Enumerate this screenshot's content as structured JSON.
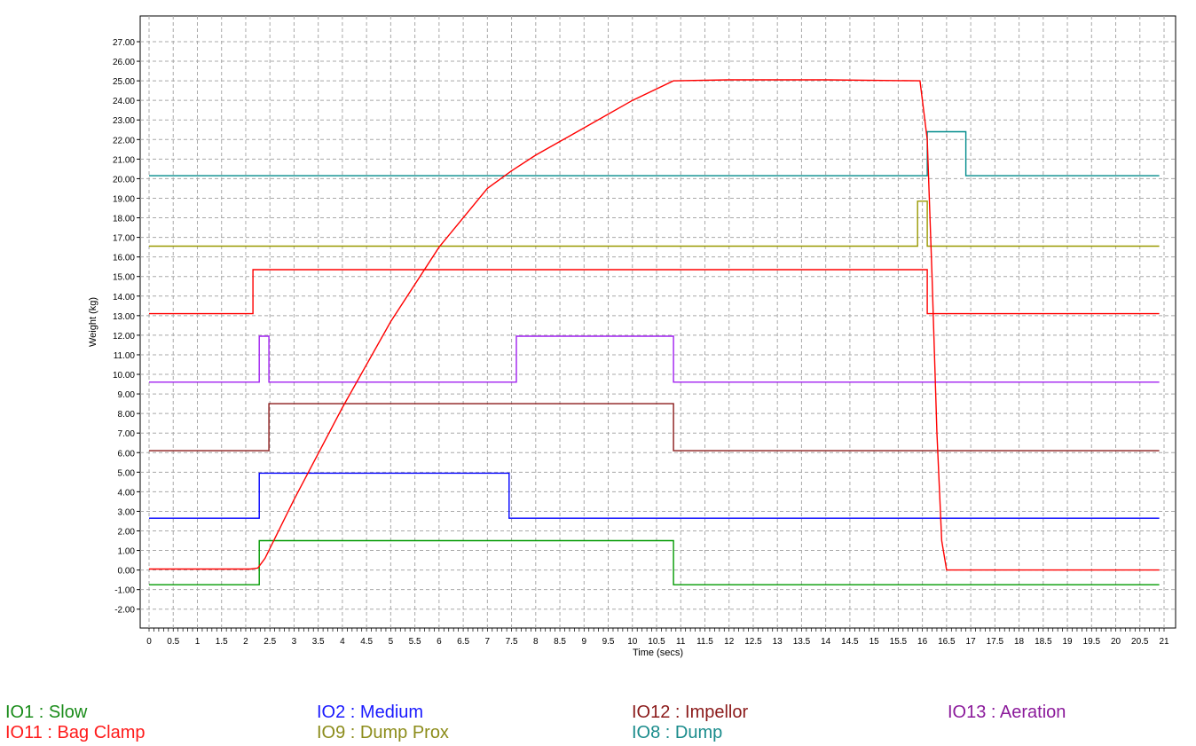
{
  "chart_data": {
    "type": "line",
    "xlabel": "Time (secs)",
    "ylabel": "Weight (kg)",
    "xlim": [
      0,
      21
    ],
    "ylim": [
      -3,
      28
    ],
    "x_ticks": [
      0,
      0.5,
      1,
      1.5,
      2,
      2.5,
      3,
      3.5,
      4,
      4.5,
      5,
      5.5,
      6,
      6.5,
      7,
      7.5,
      8,
      8.5,
      9,
      9.5,
      10,
      10.5,
      11,
      11.5,
      12,
      12.5,
      13,
      13.5,
      14,
      14.5,
      15,
      15.5,
      16,
      16.5,
      17,
      17.5,
      18,
      18.5,
      19,
      19.5,
      20,
      20.5,
      21
    ],
    "y_ticks": [
      -2,
      -1,
      0,
      1,
      2,
      3,
      4,
      5,
      6,
      7,
      8,
      9,
      10,
      11,
      12,
      13,
      14,
      15,
      16,
      17,
      18,
      19,
      20,
      21,
      22,
      23,
      24,
      25,
      26,
      27
    ],
    "grid": true,
    "series": [
      {
        "name": "IO1 : Slow",
        "color": "#009900",
        "x": [
          0,
          2.28,
          2.28,
          10.85,
          10.85,
          20.9
        ],
        "y": [
          -0.75,
          -0.75,
          1.5,
          1.5,
          -0.75,
          -0.75
        ]
      },
      {
        "name": "IO2 : Medium",
        "color": "#0000ff",
        "x": [
          0,
          2.28,
          2.28,
          7.45,
          7.45,
          20.9
        ],
        "y": [
          2.65,
          2.65,
          4.95,
          4.95,
          2.65,
          2.65
        ]
      },
      {
        "name": "IO12 : Impellor",
        "color": "#8b1a1a",
        "x": [
          0,
          2.48,
          2.48,
          10.85,
          10.85,
          20.9
        ],
        "y": [
          6.1,
          6.1,
          8.5,
          8.5,
          6.1,
          6.1
        ]
      },
      {
        "name": "IO13 : Aeration",
        "color": "#a020f0",
        "x": [
          0,
          2.28,
          2.28,
          2.48,
          2.48,
          7.6,
          7.6,
          10.85,
          10.85,
          20.9
        ],
        "y": [
          9.6,
          9.6,
          11.95,
          11.95,
          9.6,
          9.6,
          11.95,
          11.95,
          9.6,
          9.6
        ]
      },
      {
        "name": "IO11 : Bag Clamp",
        "color": "#ff0000",
        "x": [
          0,
          2.15,
          2.15,
          16.1,
          16.1,
          20.9
        ],
        "y": [
          13.1,
          13.1,
          15.35,
          15.35,
          13.1,
          13.1
        ]
      },
      {
        "name": "IO9 : Dump Prox",
        "color": "#999900",
        "x": [
          0,
          15.9,
          15.9,
          16.1,
          16.1,
          20.9
        ],
        "y": [
          16.55,
          16.55,
          18.85,
          18.85,
          16.55,
          16.55
        ]
      },
      {
        "name": "IO8 : Dump",
        "color": "#008b8b",
        "x": [
          0,
          16.1,
          16.1,
          16.9,
          16.9,
          20.9
        ],
        "y": [
          20.15,
          20.15,
          22.4,
          22.4,
          20.15,
          20.15
        ]
      },
      {
        "name": "",
        "color": "#ff0000",
        "x": [
          0,
          2.1,
          2.25,
          2.4,
          3,
          4,
          5,
          6,
          7,
          7.5,
          8,
          9,
          10,
          10.85,
          12,
          14,
          15.95,
          16.1,
          16.2,
          16.3,
          16.4,
          16.5,
          20.9
        ],
        "y": [
          0.05,
          0.05,
          0.1,
          0.6,
          3.6,
          8.3,
          12.7,
          16.5,
          19.5,
          20.4,
          21.2,
          22.6,
          24.0,
          25.0,
          25.05,
          25.05,
          25.0,
          22.0,
          15.0,
          7.0,
          1.5,
          0.0,
          0.0
        ]
      }
    ]
  },
  "legend": [
    {
      "label": "IO1 : Slow",
      "color": "#1a8c1a"
    },
    {
      "label": "IO2 : Medium",
      "color": "#1a1aff"
    },
    {
      "label": "IO12 : Impellor",
      "color": "#8b1a1a"
    },
    {
      "label": "IO13 : Aeration",
      "color": "#8b1a9b"
    },
    {
      "label": "IO11 : Bag Clamp",
      "color": "#ff1a1a"
    },
    {
      "label": "IO9 : Dump Prox",
      "color": "#8c8c1a"
    },
    {
      "label": "IO8 : Dump",
      "color": "#1a8c8c"
    }
  ]
}
